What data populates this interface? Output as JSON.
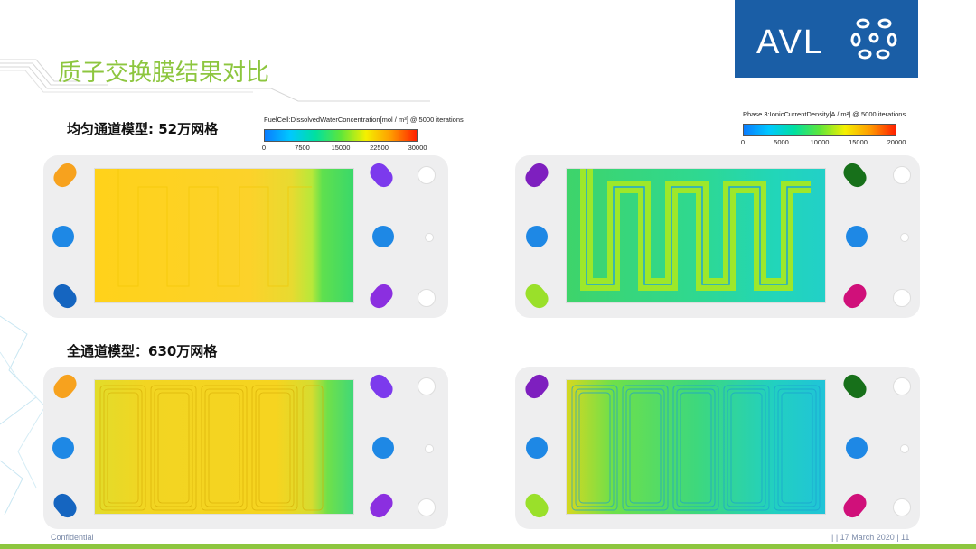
{
  "slide": {
    "title": "质子交换膜结果对比",
    "logo_text": "AVL",
    "subtitle_top": "均匀通道模型: 52万网格",
    "subtitle_bottom": "全通道模型：630万网格",
    "footer_left": "Confidential",
    "footer_right": "|  | 17 March 2020 | 11"
  },
  "colorbar_left": {
    "title": "FuelCell:DissolvedWaterConcentration[mol / m³] @ 5000 iterations",
    "ticks": [
      "0",
      "7500",
      "15000",
      "22500",
      "30000"
    ]
  },
  "colorbar_right": {
    "title": "Phase 3:IonicCurrentDensity[A / m²] @ 5000 iterations",
    "ticks": [
      "0",
      "5000",
      "10000",
      "15000",
      "20000"
    ]
  },
  "colors": {
    "accent_green": "#8dc63f",
    "logo_blue": "#1a5ea6"
  }
}
